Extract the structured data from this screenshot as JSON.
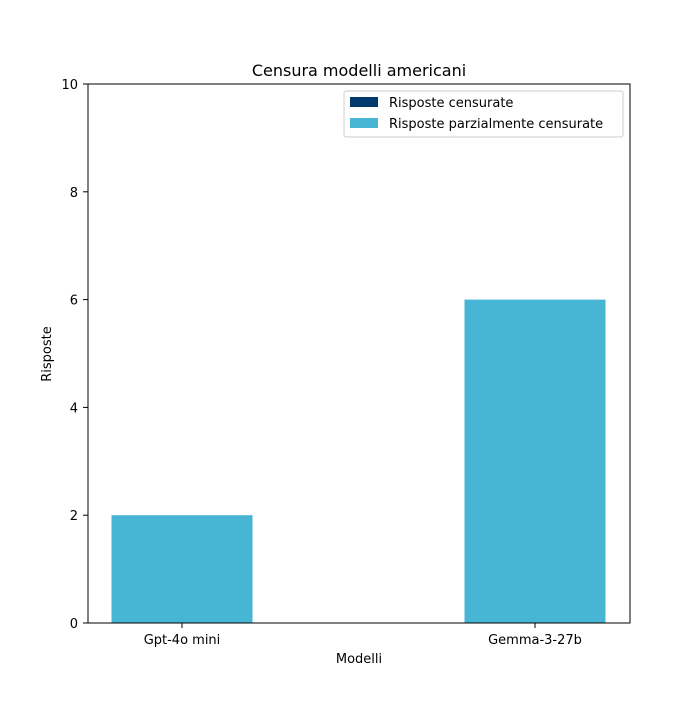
{
  "chart_data": {
    "type": "bar",
    "stacked": true,
    "title": "Censura modelli americani",
    "xlabel": "Modelli",
    "ylabel": "Risposte",
    "categories": [
      "Gpt-4o mini",
      "Gemma-3-27b"
    ],
    "series": [
      {
        "name": "Risposte censurate",
        "values": [
          0,
          0
        ],
        "color": "#003a6c"
      },
      {
        "name": "Risposte parzialmente censurate",
        "values": [
          2,
          6
        ],
        "color": "#47b6d5"
      }
    ],
    "ylim": [
      0,
      10
    ],
    "yticks": [
      "0",
      "2",
      "4",
      "6",
      "8",
      "10"
    ],
    "grid": false,
    "legend_position": "top-right"
  }
}
